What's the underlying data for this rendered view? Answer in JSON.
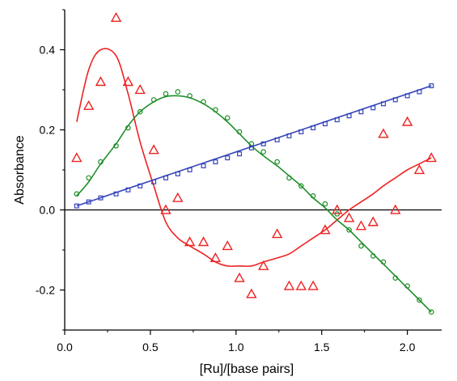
{
  "chart_data": {
    "type": "scatter",
    "title": "",
    "xlabel": "[Ru]/[base pairs]",
    "ylabel": "Absorbance",
    "xlim": [
      0.0,
      2.2
    ],
    "ylim": [
      -0.3,
      0.5
    ],
    "xticks": [
      0.0,
      0.5,
      1.0,
      1.5,
      2.0
    ],
    "xtick_labels": [
      "0.0",
      "0.5",
      "1.0",
      "1.5",
      "2.0"
    ],
    "yticks": [
      -0.2,
      0.0,
      0.2,
      0.4
    ],
    "ytick_labels": [
      "-0.2",
      "0.0",
      "0.2",
      "0.4"
    ],
    "zero_line": true,
    "grid": false,
    "legend": "none",
    "series": [
      {
        "color": "#ee2222",
        "marker": "triangle",
        "points": [
          [
            0.07,
            0.13
          ],
          [
            0.14,
            0.26
          ],
          [
            0.21,
            0.32
          ],
          [
            0.3,
            0.48
          ],
          [
            0.37,
            0.32
          ],
          [
            0.44,
            0.3
          ],
          [
            0.52,
            0.15
          ],
          [
            0.59,
            0.0
          ],
          [
            0.66,
            0.03
          ],
          [
            0.73,
            -0.08
          ],
          [
            0.81,
            -0.08
          ],
          [
            0.88,
            -0.12
          ],
          [
            0.95,
            -0.09
          ],
          [
            1.02,
            -0.17
          ],
          [
            1.09,
            -0.21
          ],
          [
            1.16,
            -0.14
          ],
          [
            1.24,
            -0.06
          ],
          [
            1.31,
            -0.19
          ],
          [
            1.38,
            -0.19
          ],
          [
            1.45,
            -0.19
          ],
          [
            1.52,
            -0.05
          ],
          [
            1.59,
            0.0
          ],
          [
            1.66,
            -0.02
          ],
          [
            1.73,
            -0.04
          ],
          [
            1.8,
            -0.03
          ],
          [
            1.86,
            0.19
          ],
          [
            1.93,
            0.0
          ],
          [
            2.0,
            0.22
          ],
          [
            2.07,
            0.1
          ],
          [
            2.14,
            0.13
          ]
        ],
        "fit": [
          [
            0.07,
            0.22
          ],
          [
            0.14,
            0.35
          ],
          [
            0.21,
            0.4
          ],
          [
            0.3,
            0.385
          ],
          [
            0.37,
            0.29
          ],
          [
            0.44,
            0.17
          ],
          [
            0.52,
            0.06
          ],
          [
            0.59,
            -0.03
          ],
          [
            0.66,
            -0.07
          ],
          [
            0.73,
            -0.09
          ],
          [
            0.81,
            -0.11
          ],
          [
            0.88,
            -0.13
          ],
          [
            0.95,
            -0.14
          ],
          [
            1.02,
            -0.14
          ],
          [
            1.09,
            -0.14
          ],
          [
            1.16,
            -0.13
          ],
          [
            1.24,
            -0.12
          ],
          [
            1.31,
            -0.11
          ],
          [
            1.38,
            -0.09
          ],
          [
            1.45,
            -0.07
          ],
          [
            1.52,
            -0.05
          ],
          [
            1.59,
            -0.025
          ],
          [
            1.66,
            0.0
          ],
          [
            1.73,
            0.02
          ],
          [
            1.8,
            0.04
          ],
          [
            1.86,
            0.06
          ],
          [
            1.93,
            0.08
          ],
          [
            2.0,
            0.1
          ],
          [
            2.07,
            0.115
          ],
          [
            2.14,
            0.13
          ]
        ]
      },
      {
        "color": "#1f8f2a",
        "marker": "circle",
        "points": [
          [
            0.07,
            0.04
          ],
          [
            0.14,
            0.08
          ],
          [
            0.21,
            0.12
          ],
          [
            0.3,
            0.16
          ],
          [
            0.37,
            0.205
          ],
          [
            0.44,
            0.245
          ],
          [
            0.52,
            0.275
          ],
          [
            0.59,
            0.29
          ],
          [
            0.66,
            0.295
          ],
          [
            0.73,
            0.285
          ],
          [
            0.81,
            0.27
          ],
          [
            0.88,
            0.25
          ],
          [
            0.95,
            0.23
          ],
          [
            1.02,
            0.195
          ],
          [
            1.09,
            0.165
          ],
          [
            1.16,
            0.145
          ],
          [
            1.24,
            0.12
          ],
          [
            1.31,
            0.08
          ],
          [
            1.38,
            0.06
          ],
          [
            1.45,
            0.035
          ],
          [
            1.52,
            0.015
          ],
          [
            1.59,
            -0.01
          ],
          [
            1.66,
            -0.05
          ],
          [
            1.73,
            -0.09
          ],
          [
            1.8,
            -0.115
          ],
          [
            1.86,
            -0.13
          ],
          [
            1.93,
            -0.17
          ],
          [
            2.0,
            -0.19
          ],
          [
            2.07,
            -0.225
          ],
          [
            2.14,
            -0.255
          ]
        ],
        "fit": [
          [
            0.07,
            0.035
          ],
          [
            0.14,
            0.07
          ],
          [
            0.21,
            0.115
          ],
          [
            0.3,
            0.165
          ],
          [
            0.37,
            0.21
          ],
          [
            0.44,
            0.245
          ],
          [
            0.52,
            0.27
          ],
          [
            0.59,
            0.283
          ],
          [
            0.66,
            0.285
          ],
          [
            0.73,
            0.28
          ],
          [
            0.81,
            0.265
          ],
          [
            0.88,
            0.245
          ],
          [
            0.95,
            0.22
          ],
          [
            1.02,
            0.19
          ],
          [
            1.09,
            0.16
          ],
          [
            1.16,
            0.135
          ],
          [
            1.24,
            0.11
          ],
          [
            1.31,
            0.085
          ],
          [
            1.38,
            0.06
          ],
          [
            1.45,
            0.03
          ],
          [
            1.52,
            0.005
          ],
          [
            1.59,
            -0.025
          ],
          [
            1.66,
            -0.05
          ],
          [
            1.73,
            -0.08
          ],
          [
            1.8,
            -0.11
          ],
          [
            1.86,
            -0.135
          ],
          [
            1.93,
            -0.165
          ],
          [
            2.0,
            -0.195
          ],
          [
            2.07,
            -0.225
          ],
          [
            2.14,
            -0.255
          ]
        ]
      },
      {
        "color": "#3344bb",
        "marker": "square",
        "points": [
          [
            0.07,
            0.01
          ],
          [
            0.14,
            0.02
          ],
          [
            0.21,
            0.03
          ],
          [
            0.3,
            0.04
          ],
          [
            0.37,
            0.05
          ],
          [
            0.44,
            0.06
          ],
          [
            0.52,
            0.07
          ],
          [
            0.59,
            0.08
          ],
          [
            0.66,
            0.09
          ],
          [
            0.73,
            0.1
          ],
          [
            0.81,
            0.11
          ],
          [
            0.88,
            0.12
          ],
          [
            0.95,
            0.13
          ],
          [
            1.02,
            0.14
          ],
          [
            1.09,
            0.155
          ],
          [
            1.16,
            0.165
          ],
          [
            1.24,
            0.175
          ],
          [
            1.31,
            0.185
          ],
          [
            1.38,
            0.195
          ],
          [
            1.45,
            0.205
          ],
          [
            1.52,
            0.215
          ],
          [
            1.59,
            0.225
          ],
          [
            1.66,
            0.235
          ],
          [
            1.73,
            0.245
          ],
          [
            1.8,
            0.255
          ],
          [
            1.86,
            0.265
          ],
          [
            1.93,
            0.275
          ],
          [
            2.0,
            0.285
          ],
          [
            2.07,
            0.295
          ],
          [
            2.14,
            0.31
          ]
        ],
        "fit": [
          [
            0.07,
            0.01
          ],
          [
            2.14,
            0.31
          ]
        ]
      }
    ]
  }
}
